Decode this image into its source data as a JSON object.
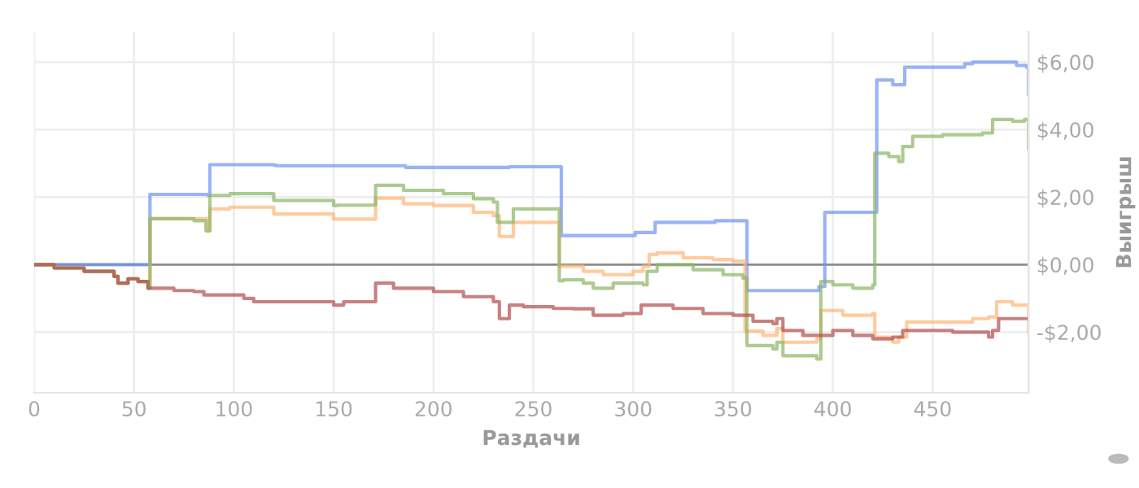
{
  "chart_data": {
    "type": "step",
    "xlabel": "Раздачи",
    "y2label": "Выигрыш",
    "xlim": [
      0,
      498
    ],
    "xticks": [
      0,
      50,
      100,
      150,
      200,
      250,
      300,
      350,
      400,
      450
    ],
    "y2lim": [
      -3.8,
      6.9
    ],
    "y2ticks": [
      {
        "value": -2,
        "label": "-$2,00"
      },
      {
        "value": 0,
        "label": "$0,00"
      },
      {
        "value": 2,
        "label": "$2,00"
      },
      {
        "value": 4,
        "label": "$4,00"
      },
      {
        "value": 6,
        "label": "$6,00"
      }
    ],
    "grid": true,
    "marker": "none",
    "line_style": "solid",
    "ref_lines": [
      {
        "axis": "y2",
        "value": 0,
        "color": "#8c8c8c"
      }
    ],
    "series": [
      {
        "axis": "y2",
        "color": "#6f93f2",
        "x": [
          0,
          57,
          58,
          87,
          88,
          120,
          121,
          185,
          186,
          237,
          238,
          263,
          264,
          300,
          301,
          310,
          311,
          340,
          341,
          356,
          357,
          392,
          393,
          395,
          396,
          421,
          422,
          429,
          430,
          434,
          436,
          460,
          466,
          470,
          490,
          492,
          497,
          498
        ],
        "values": [
          0,
          0,
          2.08,
          2.05,
          2.96,
          2.95,
          2.93,
          2.93,
          2.88,
          2.88,
          2.9,
          2.9,
          0.86,
          0.86,
          0.95,
          0.95,
          1.25,
          1.25,
          1.3,
          1.3,
          -0.77,
          -0.77,
          -0.65,
          -0.65,
          1.55,
          1.55,
          5.47,
          5.47,
          5.33,
          5.33,
          5.85,
          5.85,
          5.95,
          6.0,
          6.0,
          5.9,
          5.85,
          5.05
        ]
      },
      {
        "axis": "y2",
        "color": "#ffb574",
        "x": [
          0,
          10,
          25,
          40,
          42,
          47,
          52,
          57,
          58,
          87,
          88,
          98,
          120,
          150,
          170,
          171,
          185,
          200,
          220,
          230,
          233,
          236,
          240,
          262,
          263,
          275,
          285,
          300,
          305,
          308,
          312,
          325,
          340,
          350,
          355,
          356,
          365,
          372,
          375,
          390,
          392,
          393,
          394,
          405,
          420,
          421,
          430,
          433,
          437,
          460,
          470,
          478,
          482,
          490,
          496,
          498
        ],
        "values": [
          0,
          -0.1,
          -0.2,
          -0.35,
          -0.55,
          -0.42,
          -0.5,
          -0.7,
          1.36,
          1.0,
          1.65,
          1.7,
          1.5,
          1.35,
          1.35,
          1.97,
          1.8,
          1.75,
          1.55,
          1.45,
          0.83,
          0.83,
          1.25,
          1.25,
          -0.05,
          -0.2,
          -0.3,
          -0.2,
          -0.05,
          0.3,
          0.35,
          0.2,
          0.15,
          0.1,
          0.1,
          -1.97,
          -2.1,
          -1.9,
          -2.3,
          -2.3,
          -2.2,
          -2.2,
          -1.36,
          -1.5,
          -1.45,
          -2.15,
          -2.3,
          -2.15,
          -1.7,
          -1.7,
          -1.6,
          -1.55,
          -1.1,
          -1.2,
          -1.2,
          -2.0
        ]
      },
      {
        "axis": "y2",
        "color": "#8ab562",
        "x": [
          0,
          10,
          25,
          40,
          42,
          47,
          52,
          57,
          58,
          80,
          86,
          87,
          88,
          98,
          120,
          150,
          152,
          170,
          171,
          185,
          205,
          220,
          230,
          232,
          236,
          240,
          262,
          263,
          265,
          275,
          280,
          290,
          300,
          305,
          307,
          312,
          330,
          345,
          355,
          356,
          357,
          370,
          372,
          375,
          385,
          392,
          393,
          394,
          400,
          410,
          420,
          421,
          428,
          433,
          435,
          440,
          455,
          470,
          475,
          480,
          490,
          496,
          498
        ],
        "values": [
          0,
          -0.1,
          -0.2,
          -0.35,
          -0.55,
          -0.42,
          -0.5,
          -0.7,
          1.36,
          1.3,
          1.0,
          1.0,
          2.05,
          2.1,
          1.9,
          1.75,
          1.76,
          1.76,
          2.35,
          2.2,
          2.1,
          1.95,
          1.85,
          1.25,
          1.25,
          1.65,
          1.65,
          -0.48,
          -0.45,
          -0.55,
          -0.7,
          -0.55,
          -0.55,
          -0.6,
          -0.2,
          0.0,
          -0.15,
          -0.3,
          -0.4,
          -0.4,
          -2.4,
          -2.5,
          -2.3,
          -2.7,
          -2.7,
          -2.8,
          -2.8,
          -0.5,
          -0.6,
          -0.7,
          -0.6,
          3.3,
          3.2,
          3.05,
          3.5,
          3.8,
          3.85,
          3.85,
          3.9,
          4.3,
          4.25,
          4.3,
          3.45
        ]
      },
      {
        "axis": "y2",
        "color": "#b04c4c",
        "x": [
          0,
          10,
          25,
          40,
          42,
          47,
          52,
          57,
          70,
          80,
          85,
          100,
          105,
          110,
          140,
          150,
          155,
          170,
          171,
          180,
          200,
          215,
          230,
          233,
          238,
          245,
          260,
          270,
          280,
          295,
          304,
          320,
          335,
          350,
          360,
          370,
          372,
          375,
          385,
          395,
          400,
          410,
          420,
          430,
          435,
          460,
          478,
          480,
          483,
          498
        ],
        "values": [
          0,
          -0.1,
          -0.2,
          -0.35,
          -0.55,
          -0.42,
          -0.5,
          -0.7,
          -0.77,
          -0.8,
          -0.9,
          -0.9,
          -1.0,
          -1.1,
          -1.1,
          -1.2,
          -1.1,
          -1.1,
          -0.55,
          -0.7,
          -0.8,
          -0.95,
          -1.1,
          -1.6,
          -1.2,
          -1.25,
          -1.3,
          -1.31,
          -1.5,
          -1.45,
          -1.2,
          -1.3,
          -1.45,
          -1.5,
          -1.68,
          -1.75,
          -1.6,
          -1.95,
          -2.1,
          -2.1,
          -1.95,
          -2.1,
          -2.2,
          -2.15,
          -1.95,
          -2.0,
          -2.15,
          -1.95,
          -1.6,
          -1.6
        ]
      }
    ]
  }
}
